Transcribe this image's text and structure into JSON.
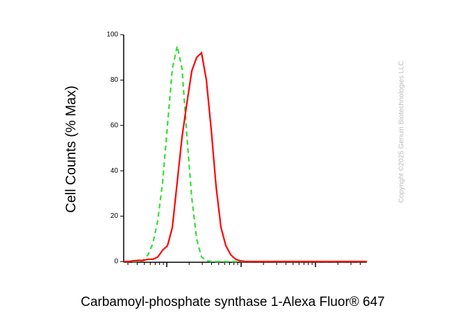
{
  "chart_data": {
    "type": "line",
    "y_label": "Cell Counts (% Max)",
    "x_label": "Carbamoyl-phosphate synthase 1-Alexa Fluor® 647",
    "watermark": "Copyright ©2025 Genuin Biotechnologies LLC",
    "categories": [
      null,
      null,
      null,
      null,
      null,
      null,
      null,
      null,
      null,
      null,
      null,
      null,
      null,
      null,
      null,
      null,
      null,
      null,
      null,
      null,
      null,
      null,
      null,
      null,
      null,
      null,
      null,
      null,
      null,
      null,
      null,
      null,
      null,
      null,
      null,
      null,
      null,
      null,
      null,
      null,
      null,
      null,
      null,
      null,
      null,
      null,
      null,
      null,
      null,
      null,
      null
    ],
    "series": [
      {
        "color": "#33dd33",
        "dashed": true,
        "values": [
          0,
          0,
          0,
          0,
          0.5,
          3,
          8,
          18,
          35,
          60,
          85,
          95,
          85,
          55,
          28,
          10,
          2,
          0.5,
          0,
          0,
          0,
          0,
          0,
          0,
          0,
          0,
          0,
          0,
          0,
          0,
          0,
          0,
          0,
          0,
          0,
          0,
          0,
          0,
          0,
          0,
          0,
          0,
          0,
          0,
          0,
          0,
          0,
          0,
          0,
          0,
          0
        ]
      },
      {
        "color": "#ff0000",
        "dashed": false,
        "values": [
          0,
          0,
          0.3,
          0.5,
          0.5,
          1,
          1,
          2,
          5,
          7,
          15,
          35,
          55,
          70,
          84,
          90,
          92,
          80,
          58,
          33,
          15,
          7,
          3,
          1,
          0.3,
          0,
          0,
          0,
          0,
          0,
          0,
          0,
          0,
          0,
          0,
          0,
          0,
          0,
          0,
          0,
          0,
          0,
          0,
          0,
          0,
          0,
          0,
          0,
          0,
          0,
          0
        ]
      }
    ],
    "ylim": [
      0,
      100
    ],
    "yticks": [
      0,
      20,
      40,
      60,
      80,
      100
    ]
  }
}
